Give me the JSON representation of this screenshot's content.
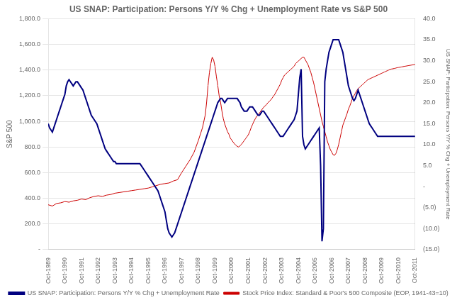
{
  "chart_data": {
    "type": "line",
    "title": "US SNAP: Participation: Persons Y/Y % Chg + Unemployment Rate vs S&P 500",
    "ylabel": "S&P 500",
    "y2label": "US SNAP: Participation: Persons Y/Y % Chg + Unemployment Rate",
    "xlim": [
      0,
      264
    ],
    "xticks": [
      {
        "value": 0,
        "label": "Oct-1989"
      },
      {
        "value": 12,
        "label": "Oct-1990"
      },
      {
        "value": 24,
        "label": "Oct-1991"
      },
      {
        "value": 36,
        "label": "Oct-1992"
      },
      {
        "value": 48,
        "label": "Oct-1993"
      },
      {
        "value": 60,
        "label": "Oct-1994"
      },
      {
        "value": 72,
        "label": "Oct-1995"
      },
      {
        "value": 84,
        "label": "Oct-1996"
      },
      {
        "value": 96,
        "label": "Oct-1997"
      },
      {
        "value": 108,
        "label": "Oct-1998"
      },
      {
        "value": 120,
        "label": "Oct-1999"
      },
      {
        "value": 132,
        "label": "Oct-2000"
      },
      {
        "value": 144,
        "label": "Oct-2001"
      },
      {
        "value": 156,
        "label": "Oct-2002"
      },
      {
        "value": 168,
        "label": "Oct-2003"
      },
      {
        "value": 180,
        "label": "Oct-2004"
      },
      {
        "value": 192,
        "label": "Oct-2005"
      },
      {
        "value": 204,
        "label": "Oct-2006"
      },
      {
        "value": 216,
        "label": "Oct-2007"
      },
      {
        "value": 228,
        "label": "Oct-2008"
      },
      {
        "value": 240,
        "label": "Oct-2009"
      },
      {
        "value": 252,
        "label": "Oct-2010"
      },
      {
        "value": 264,
        "label": "Oct-2011"
      }
    ],
    "ylim": [
      0,
      1800
    ],
    "yticks": [
      {
        "value": 0,
        "label": "-"
      },
      {
        "value": 200,
        "label": "200.0"
      },
      {
        "value": 400,
        "label": "400.0"
      },
      {
        "value": 600,
        "label": "600.0"
      },
      {
        "value": 800,
        "label": "800.0"
      },
      {
        "value": 1000,
        "label": "1,000.0"
      },
      {
        "value": 1200,
        "label": "1,200.0"
      },
      {
        "value": 1400,
        "label": "1,400.0"
      },
      {
        "value": 1600,
        "label": "1,600.0"
      },
      {
        "value": 1800,
        "label": "1,800.0"
      }
    ],
    "y2lim": [
      -15,
      40
    ],
    "y2ticks": [
      {
        "value": -15,
        "label": "(15.0)"
      },
      {
        "value": -10,
        "label": "(10.0)"
      },
      {
        "value": -5,
        "label": "(5.0)"
      },
      {
        "value": 0,
        "label": "-"
      },
      {
        "value": 5,
        "label": "5.0"
      },
      {
        "value": 10,
        "label": "10.0"
      },
      {
        "value": 15,
        "label": "15.0"
      },
      {
        "value": 20,
        "label": "20.0"
      },
      {
        "value": 25,
        "label": "25.0"
      },
      {
        "value": 30,
        "label": "30.0"
      },
      {
        "value": 35,
        "label": "35.0"
      },
      {
        "value": 40,
        "label": "40.0"
      }
    ],
    "grid": "y",
    "legend": "bottom",
    "series": [
      {
        "name": "Stock Price Index: Standard & Poor's 500 Composite (EOP, 1941-43=10)",
        "color": "#cc0000",
        "x": [
          0,
          3,
          6,
          9,
          12,
          15,
          18,
          21,
          24,
          27,
          30,
          33,
          36,
          39,
          42,
          45,
          48,
          51,
          54,
          57,
          60,
          63,
          66,
          69,
          72,
          75,
          78,
          81,
          84,
          87,
          90,
          93,
          96,
          99,
          102,
          105,
          108,
          111,
          113,
          114,
          115,
          116,
          117,
          118,
          119,
          120,
          121,
          122,
          123,
          124,
          125,
          126,
          127,
          128,
          129,
          130,
          131,
          132,
          133,
          134,
          135,
          136,
          137,
          138,
          139,
          140,
          141,
          142,
          143,
          144,
          145,
          146,
          147,
          148,
          149,
          150,
          151,
          152,
          153,
          154,
          155,
          156,
          157,
          158,
          159,
          160,
          161,
          162,
          163,
          164,
          165,
          166,
          167,
          168,
          169,
          170,
          171,
          172,
          173,
          174,
          175,
          176,
          177,
          178,
          179,
          180,
          181,
          182,
          183,
          184,
          185,
          186,
          187,
          188,
          189,
          190,
          191,
          192,
          193,
          194,
          195,
          196,
          197,
          198,
          199,
          200,
          201,
          202,
          203,
          204,
          205,
          206,
          207,
          208,
          209,
          210,
          211,
          212,
          213,
          214,
          215,
          216,
          217,
          218,
          219,
          220,
          221,
          222,
          223,
          224,
          225,
          226,
          227,
          228,
          229,
          230,
          231,
          232,
          233,
          234,
          235,
          236,
          237,
          238,
          239,
          240,
          241,
          242,
          243,
          244,
          245,
          246,
          247,
          248,
          249,
          250,
          251,
          252,
          253,
          254,
          255,
          256,
          257,
          258,
          259,
          260,
          261,
          262,
          263,
          264
        ],
        "values": [
          350,
          340,
          360,
          365,
          375,
          370,
          380,
          385,
          395,
          390,
          405,
          415,
          420,
          415,
          425,
          430,
          440,
          445,
          450,
          455,
          460,
          465,
          470,
          475,
          480,
          490,
          500,
          510,
          515,
          520,
          535,
          545,
          600,
          650,
          700,
          760,
          850,
          950,
          1050,
          1150,
          1280,
          1380,
          1450,
          1500,
          1480,
          1430,
          1350,
          1280,
          1200,
          1150,
          1080,
          1020,
          980,
          950,
          920,
          900,
          870,
          855,
          840,
          825,
          815,
          805,
          800,
          810,
          820,
          835,
          850,
          865,
          880,
          895,
          920,
          950,
          975,
          1000,
          1020,
          1040,
          1050,
          1065,
          1080,
          1095,
          1110,
          1120,
          1130,
          1145,
          1155,
          1165,
          1180,
          1195,
          1210,
          1230,
          1250,
          1270,
          1290,
          1320,
          1340,
          1360,
          1370,
          1380,
          1390,
          1400,
          1410,
          1420,
          1430,
          1450,
          1460,
          1470,
          1480,
          1490,
          1500,
          1500,
          1480,
          1460,
          1440,
          1410,
          1380,
          1340,
          1300,
          1250,
          1200,
          1150,
          1100,
          1050,
          1000,
          960,
          920,
          880,
          840,
          810,
          780,
          760,
          740,
          735,
          750,
          780,
          820,
          870,
          920,
          970,
          1000,
          1030,
          1060,
          1095,
          1120,
          1150,
          1180,
          1200,
          1220,
          1240,
          1255,
          1265,
          1275,
          1285,
          1295,
          1305,
          1315,
          1325,
          1330,
          1335,
          1340,
          1345,
          1350,
          1355,
          1360,
          1365,
          1370,
          1375,
          1380,
          1385,
          1390,
          1395,
          1400,
          1405,
          1408,
          1410,
          1412,
          1415,
          1418,
          1420,
          1422,
          1424,
          1426,
          1428,
          1430,
          1432,
          1434,
          1436,
          1438,
          1440,
          1442,
          1444
        ]
      },
      {
        "name": "US SNAP: Participation: Persons Y/Y % Chg + Unemployment Rate",
        "color": "#000080",
        "axis": "y2",
        "x": [
          0,
          1,
          2,
          3,
          4,
          5,
          6,
          7,
          8,
          9,
          10,
          11,
          12,
          13,
          14,
          15,
          16,
          17,
          18,
          19,
          20,
          21,
          22,
          23,
          24,
          25,
          26,
          27,
          28,
          29,
          30,
          31,
          32,
          33,
          34,
          35,
          36,
          37,
          38,
          39,
          40,
          41,
          42,
          43,
          44,
          45,
          46,
          47,
          48,
          49,
          50,
          51,
          52,
          53,
          54,
          55,
          56,
          57,
          58,
          59,
          60,
          61,
          62,
          63,
          64,
          65,
          66,
          67,
          68,
          69,
          70,
          71,
          72,
          73,
          74,
          75,
          76,
          77,
          78,
          79,
          80,
          81,
          82,
          83,
          84,
          85,
          86,
          87,
          88,
          89,
          90,
          91,
          92,
          93,
          94,
          95,
          96,
          97,
          98,
          99,
          100,
          101,
          102,
          103,
          104,
          105,
          106,
          107,
          108,
          109,
          110,
          111,
          112,
          113,
          114,
          115,
          116,
          117,
          118,
          119,
          120,
          121,
          122,
          123,
          124,
          125,
          126,
          127,
          128,
          129,
          130,
          131,
          132,
          133,
          134,
          135,
          136,
          137,
          138,
          139,
          140,
          141,
          142,
          143,
          144,
          145,
          146,
          147,
          148,
          149,
          150,
          151,
          152,
          153,
          154,
          155,
          156,
          157,
          158,
          159,
          160,
          161,
          162,
          163,
          164,
          165,
          166,
          167,
          168,
          169,
          170,
          171,
          172,
          173,
          174,
          175,
          176,
          177,
          178,
          179,
          180,
          181,
          182,
          183,
          184,
          185,
          186,
          187,
          188,
          189,
          190,
          191,
          192,
          193,
          194,
          195,
          196,
          197,
          198,
          199,
          200,
          201,
          202,
          203,
          204,
          205,
          206,
          207,
          208,
          209,
          210,
          211,
          212,
          213,
          214,
          215,
          216,
          217,
          218,
          219,
          220,
          221,
          222,
          223,
          224,
          225,
          226,
          227,
          228,
          229,
          230,
          231,
          232,
          233,
          234,
          235,
          236,
          237,
          238,
          239,
          240,
          241,
          242,
          243,
          244,
          245,
          246,
          247,
          248,
          249,
          250,
          251,
          252,
          253,
          254,
          255,
          256,
          257,
          258,
          259,
          260,
          261,
          262,
          263,
          264
        ],
        "values": [
          15,
          14,
          13.5,
          13,
          14,
          15,
          16,
          17,
          18,
          19,
          20,
          21,
          22,
          24,
          25,
          25.5,
          25,
          24.5,
          24,
          24.5,
          25,
          25,
          24.5,
          24,
          23.5,
          23,
          22,
          21,
          20,
          19,
          18,
          17,
          16.5,
          16,
          15.5,
          15,
          14,
          13,
          12,
          11,
          10,
          9,
          8.5,
          8,
          7.5,
          7,
          6.5,
          6,
          6,
          5.5,
          5.5,
          5.5,
          5.5,
          5.5,
          5.5,
          5.5,
          5.5,
          5.5,
          5.5,
          5.5,
          5.5,
          5.5,
          5.5,
          5.5,
          5.5,
          5.5,
          5.5,
          5,
          4.5,
          4,
          3.5,
          3,
          2.5,
          2,
          1.5,
          1,
          0.5,
          0,
          -0.5,
          -1,
          -2,
          -3,
          -4,
          -5,
          -6,
          -8,
          -10,
          -11,
          -11.5,
          -12,
          -11.5,
          -11,
          -10,
          -9,
          -8,
          -7,
          -6,
          -5,
          -4,
          -3,
          -2,
          -1,
          0,
          1,
          2,
          3,
          4,
          5,
          6,
          7,
          8,
          9,
          10,
          11,
          12,
          13,
          14,
          15,
          16,
          17,
          18,
          19,
          20,
          20.5,
          21,
          21,
          20.5,
          20,
          20.5,
          21,
          21,
          21,
          21,
          21,
          21,
          21,
          21,
          20.5,
          20,
          19,
          18.5,
          18,
          18,
          18,
          18.5,
          19,
          19,
          19,
          18.5,
          18,
          17.5,
          17,
          17,
          17.5,
          18,
          18,
          17.5,
          17,
          16.5,
          16,
          15.5,
          15,
          14.5,
          14,
          13.5,
          13,
          12.5,
          12,
          12,
          12,
          12.5,
          13,
          13.5,
          14,
          14.5,
          15,
          15.5,
          16,
          17,
          18,
          22,
          26,
          28,
          12,
          10,
          9,
          9.5,
          10,
          10.5,
          11,
          11.5,
          12,
          12.5,
          13,
          13.5,
          14,
          5,
          -13,
          -10,
          25,
          28,
          30,
          32,
          33,
          34,
          35,
          35,
          35,
          35,
          35,
          34,
          33,
          32,
          30,
          28,
          26,
          24,
          23,
          22,
          21,
          20.5,
          21,
          22,
          23,
          22,
          21,
          20,
          19,
          18,
          17,
          16,
          15,
          14.5,
          14,
          13.5,
          13,
          12.5,
          12,
          12,
          12,
          12,
          12,
          12,
          12,
          12,
          12,
          12,
          12,
          12,
          12,
          12,
          12,
          12,
          12,
          12,
          12,
          12,
          12,
          12,
          12,
          12,
          12,
          12,
          12,
          12
        ]
      }
    ]
  }
}
